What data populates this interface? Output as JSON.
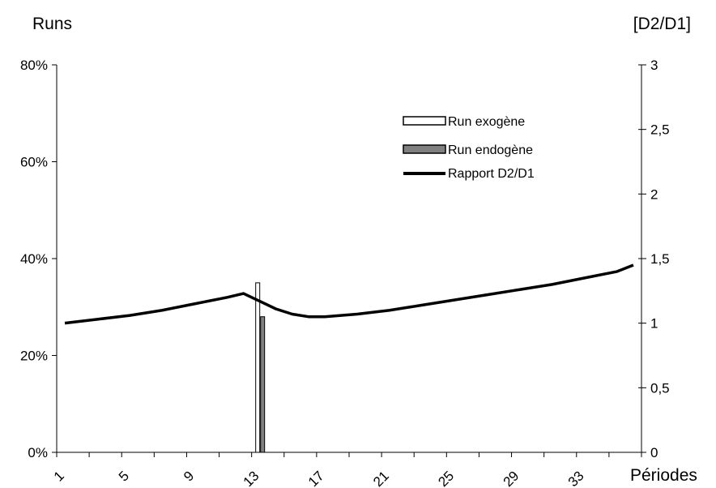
{
  "chart_data": {
    "type": "bar+line",
    "y_left_label": "Runs",
    "y_right_label": "[D2/D1]",
    "x_label": "Périodes",
    "y_left_ticks": [
      "0%",
      "20%",
      "40%",
      "60%",
      "80%"
    ],
    "y_left_lim": [
      0,
      80
    ],
    "y_right_ticks": [
      "0",
      "0,5",
      "1",
      "1,5",
      "2",
      "2,5",
      "3"
    ],
    "y_right_lim": [
      0,
      3
    ],
    "x_tick_labels": [
      "1",
      "5",
      "9",
      "13",
      "17",
      "21",
      "25",
      "29",
      "33"
    ],
    "x_tick_values": [
      1,
      5,
      9,
      13,
      17,
      21,
      25,
      29,
      33
    ],
    "x_range": [
      1,
      36
    ],
    "grid": false,
    "legend_position": "top-right",
    "series": [
      {
        "name": "Run exogène",
        "type": "bar",
        "axis": "left",
        "color": "#ffffff",
        "points": [
          {
            "x": 13,
            "y": 35
          }
        ]
      },
      {
        "name": "Run endogène",
        "type": "bar",
        "axis": "left",
        "color": "#808080",
        "points": [
          {
            "x": 13,
            "y": 28
          }
        ]
      },
      {
        "name": "Rapport D2/D1",
        "type": "line",
        "axis": "right",
        "color": "#000000",
        "x": [
          1,
          3,
          5,
          7,
          9,
          11,
          12,
          13,
          14,
          15,
          16,
          17,
          19,
          21,
          23,
          25,
          27,
          29,
          31,
          33,
          35,
          36
        ],
        "y": [
          1.0,
          1.03,
          1.06,
          1.1,
          1.15,
          1.2,
          1.23,
          1.17,
          1.11,
          1.07,
          1.05,
          1.05,
          1.07,
          1.1,
          1.14,
          1.18,
          1.22,
          1.26,
          1.3,
          1.35,
          1.4,
          1.45
        ]
      }
    ]
  }
}
